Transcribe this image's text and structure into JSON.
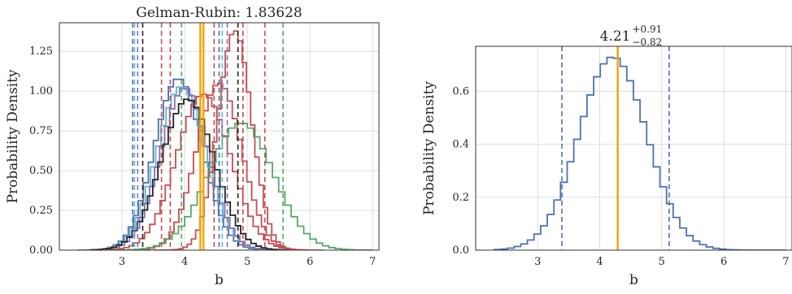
{
  "chart_data": [
    {
      "type": "line",
      "subtype": "step-histogram",
      "title": "Gelman-Rubin: 1.83628",
      "xlabel": "b",
      "ylabel": "Probability Density",
      "xlim": [
        2.0,
        7.1
      ],
      "ylim": [
        0.0,
        1.43
      ],
      "xticks": [
        3,
        4,
        5,
        6,
        7
      ],
      "xtick_labels": [
        "3",
        "4",
        "5",
        "6",
        "7"
      ],
      "yticks": [
        0.0,
        0.25,
        0.5,
        0.75,
        1.0,
        1.25
      ],
      "ytick_labels": [
        "0.00",
        "0.25",
        "0.50",
        "0.75",
        "1.00",
        "1.25"
      ],
      "grid": true,
      "series": [
        {
          "color": "#4c72b0",
          "mu": 3.9,
          "sigma": 0.38,
          "peak": 1.08,
          "x_range": [
            2.3,
            5.5
          ],
          "lower": 3.17,
          "upper": 4.55
        },
        {
          "color": "#64b5cd",
          "mu": 3.95,
          "sigma": 0.39,
          "peak": 1.03,
          "x_range": [
            2.3,
            5.6
          ],
          "lower": 3.2,
          "upper": 4.6
        },
        {
          "color": "#8172b2",
          "mu": 4.0,
          "sigma": 0.38,
          "peak": 1.02,
          "x_range": [
            2.4,
            5.6
          ],
          "lower": 3.25,
          "upper": 4.68
        },
        {
          "color": "#222222",
          "mu": 4.05,
          "sigma": 0.42,
          "peak": 0.95,
          "x_range": [
            2.5,
            5.8
          ],
          "lower": 3.33,
          "upper": 4.85
        },
        {
          "color": "#c44e52",
          "mu": 4.3,
          "sigma": 0.43,
          "peak": 0.98,
          "x_range": [
            2.7,
            6.0
          ],
          "lower": 3.77,
          "upper": 4.93
        },
        {
          "color": "#c44e52",
          "mu": 4.55,
          "sigma": 0.36,
          "peak": 1.05,
          "x_range": [
            2.9,
            6.0
          ],
          "lower": 3.63,
          "upper": 5.28
        },
        {
          "color": "#c44e52",
          "mu": 4.8,
          "sigma": 0.27,
          "peak": 1.38,
          "x_range": [
            3.5,
            6.2
          ],
          "lower": 4.47,
          "upper": 4.93
        },
        {
          "color": "#55a868",
          "mu": 4.9,
          "sigma": 0.52,
          "peak": 0.8,
          "x_range": [
            3.0,
            7.0
          ],
          "lower": 3.95,
          "upper": 5.57
        }
      ],
      "vlines_solid": [
        {
          "x": 4.25,
          "color": "#ff9f00"
        },
        {
          "x": 4.3,
          "color": "#ff9f00"
        }
      ]
    },
    {
      "type": "line",
      "subtype": "step-histogram",
      "title_main": "4.21",
      "title_sup": "+0.91",
      "title_sub": "−0.82",
      "xlabel": "b",
      "ylabel": "Probability Density",
      "xlim": [
        2.0,
        7.1
      ],
      "ylim": [
        0.0,
        0.77
      ],
      "xticks": [
        3,
        4,
        5,
        6,
        7
      ],
      "xtick_labels": [
        "3",
        "4",
        "5",
        "6",
        "7"
      ],
      "yticks": [
        0.0,
        0.2,
        0.4,
        0.6
      ],
      "ytick_labels": [
        "0.0",
        "0.2",
        "0.4",
        "0.6"
      ],
      "grid": true,
      "series": [
        {
          "color": "#4c72b0",
          "mu": 4.21,
          "sigma": 0.545,
          "peak": 0.73,
          "x_range": [
            2.3,
            7.0
          ],
          "lower": 3.39,
          "upper": 5.12
        }
      ],
      "vlines_solid": [
        {
          "x": 4.29,
          "color": "#ff9f00"
        }
      ]
    }
  ]
}
